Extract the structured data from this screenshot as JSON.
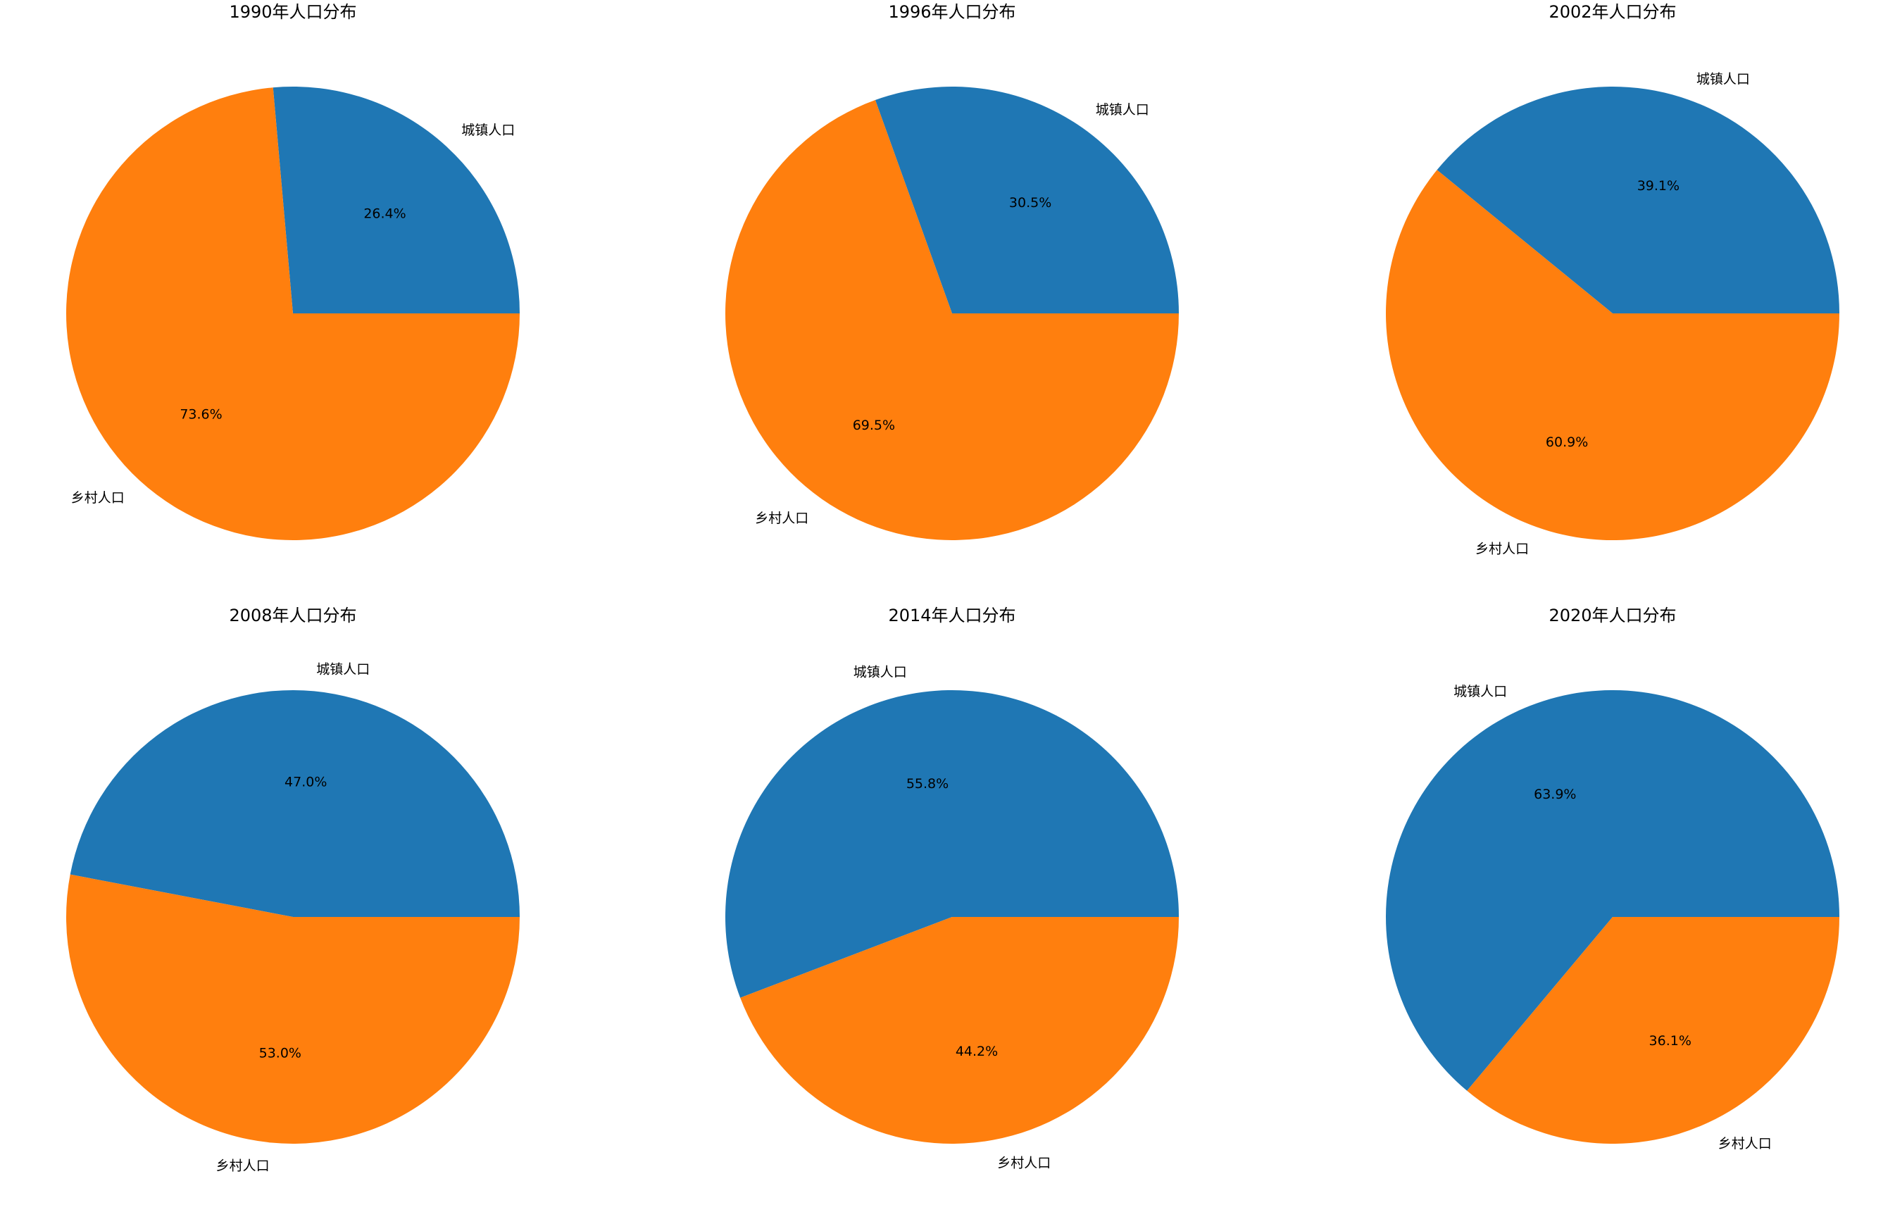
{
  "chart_data": [
    {
      "type": "pie",
      "title": "1990年人口分布",
      "categories": [
        "城镇人口",
        "乡村人口"
      ],
      "values": [
        26.4,
        73.6
      ],
      "value_labels": [
        "26.4%",
        "73.6%"
      ],
      "colors": [
        "#1f77b4",
        "#ff7f0e"
      ]
    },
    {
      "type": "pie",
      "title": "1996年人口分布",
      "categories": [
        "城镇人口",
        "乡村人口"
      ],
      "values": [
        30.5,
        69.5
      ],
      "value_labels": [
        "30.5%",
        "69.5%"
      ],
      "colors": [
        "#1f77b4",
        "#ff7f0e"
      ]
    },
    {
      "type": "pie",
      "title": "2002年人口分布",
      "categories": [
        "城镇人口",
        "乡村人口"
      ],
      "values": [
        39.1,
        60.9
      ],
      "value_labels": [
        "39.1%",
        "60.9%"
      ],
      "colors": [
        "#1f77b4",
        "#ff7f0e"
      ]
    },
    {
      "type": "pie",
      "title": "2008年人口分布",
      "categories": [
        "城镇人口",
        "乡村人口"
      ],
      "values": [
        47.0,
        53.0
      ],
      "value_labels": [
        "47.0%",
        "53.0%"
      ],
      "colors": [
        "#1f77b4",
        "#ff7f0e"
      ]
    },
    {
      "type": "pie",
      "title": "2014年人口分布",
      "categories": [
        "城镇人口",
        "乡村人口"
      ],
      "values": [
        55.8,
        44.2
      ],
      "value_labels": [
        "55.8%",
        "44.2%"
      ],
      "colors": [
        "#1f77b4",
        "#ff7f0e"
      ]
    },
    {
      "type": "pie",
      "title": "2020年人口分布",
      "categories": [
        "城镇人口",
        "乡村人口"
      ],
      "values": [
        63.9,
        36.1
      ],
      "value_labels": [
        "63.9%",
        "36.1%"
      ],
      "colors": [
        "#1f77b4",
        "#ff7f0e"
      ]
    }
  ]
}
